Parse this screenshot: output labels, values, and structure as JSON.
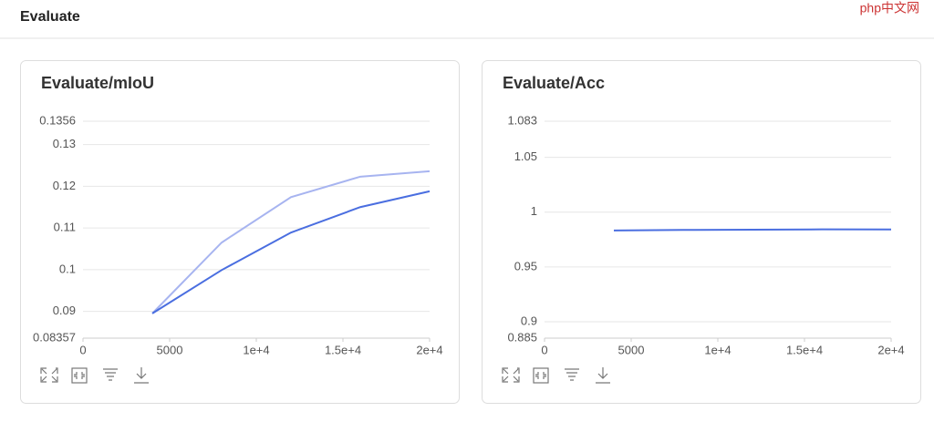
{
  "header": {
    "title": "Evaluate"
  },
  "watermark": "php中文网",
  "chart_data": [
    {
      "type": "line",
      "title": "Evaluate/mIoU",
      "x": [
        4000,
        8000,
        12000,
        16000,
        20000
      ],
      "series": [
        {
          "color": "#a7b4f0",
          "values": [
            0.0895,
            0.1065,
            0.1174,
            0.1223,
            0.1236
          ]
        },
        {
          "color": "#4a6ee0",
          "values": [
            0.0895,
            0.0999,
            0.1089,
            0.115,
            0.1188
          ]
        }
      ],
      "xlim": [
        0,
        20000
      ],
      "xticks": [
        0,
        5000,
        {
          "value": 10000,
          "label": "1e+4"
        },
        {
          "value": 15000,
          "label": "1.5e+4"
        },
        {
          "value": 20000,
          "label": "2e+4"
        }
      ],
      "ylim": [
        0.08357,
        0.1356
      ],
      "yticks": [
        0.08357,
        0.09,
        0.1,
        0.11,
        0.12,
        0.13,
        0.1356
      ],
      "grid": true
    },
    {
      "type": "line",
      "title": "Evaluate/Acc",
      "x": [
        4000,
        8000,
        12000,
        16000,
        20000
      ],
      "series": [
        {
          "color": "#4a6ee0",
          "values": [
            0.9833,
            0.9838,
            0.984,
            0.9843,
            0.9842
          ]
        }
      ],
      "xlim": [
        0,
        20000
      ],
      "xticks": [
        0,
        5000,
        {
          "value": 10000,
          "label": "1e+4"
        },
        {
          "value": 15000,
          "label": "1.5e+4"
        },
        {
          "value": 20000,
          "label": "2e+4"
        }
      ],
      "ylim": [
        0.885,
        1.083
      ],
      "yticks": [
        0.885,
        0.9,
        0.95,
        1,
        1.05,
        1.083
      ],
      "grid": true
    }
  ]
}
